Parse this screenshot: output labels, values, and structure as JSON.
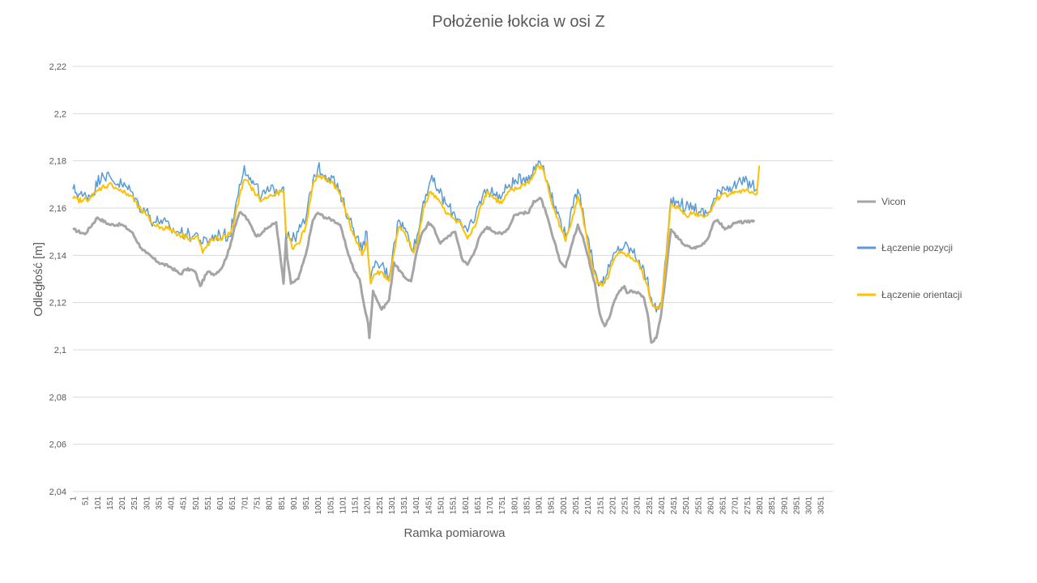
{
  "chart_data": {
    "type": "line",
    "title": "Położenie łokcia w osi Z",
    "xlabel": "Ramka pomiarowa",
    "ylabel": "Odległość [m]",
    "ylim": [
      2.04,
      2.22
    ],
    "xlim": [
      1,
      3100
    ],
    "grid": true,
    "legend_position": "right",
    "ytick_labels": [
      "2,04",
      "2,06",
      "2,08",
      "2,1",
      "2,12",
      "2,14",
      "2,16",
      "2,18",
      "2,2",
      "2,22"
    ],
    "xtick_labels": [
      "1",
      "51",
      "101",
      "151",
      "201",
      "251",
      "301",
      "351",
      "401",
      "451",
      "501",
      "551",
      "601",
      "651",
      "701",
      "751",
      "801",
      "851",
      "901",
      "951",
      "1001",
      "1051",
      "1101",
      "1151",
      "1201",
      "1251",
      "1301",
      "1351",
      "1401",
      "1451",
      "1501",
      "1551",
      "1601",
      "1651",
      "1701",
      "1751",
      "1801",
      "1851",
      "1901",
      "1951",
      "2001",
      "2051",
      "2101",
      "2151",
      "2201",
      "2251",
      "2301",
      "2351",
      "2401",
      "2451",
      "2501",
      "2551",
      "2601",
      "2651",
      "2701",
      "2751",
      "2801",
      "2851",
      "2901",
      "2951",
      "3001",
      "3051"
    ],
    "series": [
      {
        "name": "Vicon",
        "color": "#a5a5a5",
        "x": [
          1,
          50,
          101,
          150,
          200,
          240,
          280,
          300,
          350,
          400,
          440,
          460,
          480,
          500,
          520,
          550,
          580,
          610,
          640,
          660,
          680,
          700,
          725,
          750,
          775,
          800,
          830,
          860,
          870,
          875,
          890,
          920,
          950,
          980,
          1000,
          1030,
          1060,
          1090,
          1120,
          1150,
          1170,
          1190,
          1205,
          1210,
          1225,
          1260,
          1290,
          1310,
          1350,
          1380,
          1400,
          1420,
          1450,
          1470,
          1500,
          1530,
          1560,
          1590,
          1610,
          1640,
          1660,
          1690,
          1720,
          1750,
          1780,
          1800,
          1830,
          1860,
          1880,
          1910,
          1930,
          1960,
          1990,
          2010,
          2040,
          2060,
          2080,
          2100,
          2130,
          2150,
          2170,
          2190,
          2210,
          2230,
          2250,
          2260,
          2280,
          2310,
          2330,
          2345,
          2360,
          2380,
          2400,
          2420,
          2440,
          2470,
          2500,
          2530,
          2560,
          2590,
          2610,
          2630,
          2660,
          2690,
          2720,
          2750,
          2780
        ],
        "y": [
          2.151,
          2.149,
          2.156,
          2.153,
          2.153,
          2.15,
          2.143,
          2.141,
          2.137,
          2.135,
          2.132,
          2.134,
          2.134,
          2.133,
          2.127,
          2.133,
          2.132,
          2.135,
          2.143,
          2.152,
          2.158,
          2.157,
          2.153,
          2.148,
          2.15,
          2.152,
          2.154,
          2.128,
          2.147,
          2.139,
          2.128,
          2.13,
          2.14,
          2.155,
          2.158,
          2.156,
          2.155,
          2.153,
          2.142,
          2.133,
          2.13,
          2.118,
          2.111,
          2.105,
          2.125,
          2.117,
          2.121,
          2.137,
          2.131,
          2.129,
          2.14,
          2.148,
          2.154,
          2.152,
          2.145,
          2.148,
          2.15,
          2.138,
          2.136,
          2.142,
          2.148,
          2.152,
          2.15,
          2.149,
          2.152,
          2.157,
          2.158,
          2.158,
          2.163,
          2.164,
          2.158,
          2.147,
          2.137,
          2.135,
          2.146,
          2.153,
          2.148,
          2.14,
          2.128,
          2.115,
          2.11,
          2.114,
          2.121,
          2.125,
          2.127,
          2.124,
          2.125,
          2.124,
          2.122,
          2.115,
          2.103,
          2.105,
          2.115,
          2.133,
          2.151,
          2.147,
          2.144,
          2.143,
          2.144,
          2.147,
          2.153,
          2.155,
          2.151,
          2.153,
          2.154,
          2.154,
          2.155
        ]
      },
      {
        "name": "Łączenie pozycji",
        "color": "#5b9bd5",
        "x": [
          1,
          40,
          80,
          120,
          160,
          200,
          240,
          270,
          300,
          330,
          360,
          400,
          430,
          460,
          490,
          510,
          530,
          560,
          600,
          640,
          660,
          680,
          700,
          720,
          740,
          770,
          800,
          830,
          860,
          870,
          880,
          895,
          920,
          950,
          980,
          1000,
          1030,
          1060,
          1100,
          1130,
          1160,
          1180,
          1200,
          1215,
          1230,
          1260,
          1290,
          1310,
          1330,
          1360,
          1390,
          1410,
          1430,
          1460,
          1490,
          1520,
          1550,
          1580,
          1610,
          1640,
          1660,
          1690,
          1720,
          1750,
          1780,
          1810,
          1840,
          1870,
          1900,
          1920,
          1940,
          1960,
          1990,
          2010,
          2040,
          2060,
          2080,
          2100,
          2120,
          2140,
          2160,
          2180,
          2200,
          2220,
          2250,
          2280,
          2310,
          2340,
          2360,
          2380,
          2400,
          2420,
          2440,
          2470,
          2500,
          2530,
          2560,
          2590,
          2620,
          2650,
          2680,
          2710,
          2740,
          2770,
          2790
        ],
        "y": [
          2.168,
          2.165,
          2.166,
          2.175,
          2.172,
          2.17,
          2.167,
          2.161,
          2.159,
          2.154,
          2.155,
          2.151,
          2.15,
          2.149,
          2.148,
          2.149,
          2.145,
          2.147,
          2.149,
          2.148,
          2.158,
          2.17,
          2.178,
          2.172,
          2.17,
          2.165,
          2.167,
          2.168,
          2.169,
          2.147,
          2.15,
          2.146,
          2.15,
          2.155,
          2.172,
          2.177,
          2.174,
          2.173,
          2.163,
          2.155,
          2.148,
          2.142,
          2.15,
          2.13,
          2.135,
          2.136,
          2.131,
          2.145,
          2.155,
          2.15,
          2.143,
          2.15,
          2.163,
          2.172,
          2.168,
          2.162,
          2.158,
          2.155,
          2.15,
          2.155,
          2.163,
          2.168,
          2.166,
          2.165,
          2.17,
          2.171,
          2.173,
          2.174,
          2.18,
          2.178,
          2.17,
          2.162,
          2.155,
          2.148,
          2.16,
          2.168,
          2.16,
          2.148,
          2.138,
          2.13,
          2.128,
          2.132,
          2.138,
          2.142,
          2.144,
          2.142,
          2.138,
          2.13,
          2.122,
          2.116,
          2.12,
          2.14,
          2.164,
          2.163,
          2.16,
          2.161,
          2.158,
          2.158,
          2.164,
          2.169,
          2.169,
          2.17,
          2.171,
          2.17,
          2.168
        ]
      },
      {
        "name": "Łączenie orientacji",
        "color": "#ffc000",
        "x": [
          1,
          40,
          80,
          120,
          160,
          200,
          240,
          270,
          300,
          330,
          360,
          400,
          430,
          460,
          490,
          510,
          530,
          560,
          600,
          640,
          660,
          680,
          700,
          720,
          740,
          770,
          800,
          830,
          860,
          870,
          880,
          895,
          920,
          950,
          980,
          1000,
          1030,
          1060,
          1100,
          1130,
          1160,
          1180,
          1200,
          1215,
          1230,
          1260,
          1290,
          1310,
          1330,
          1360,
          1390,
          1410,
          1430,
          1460,
          1490,
          1520,
          1550,
          1580,
          1610,
          1640,
          1660,
          1690,
          1720,
          1750,
          1780,
          1810,
          1840,
          1870,
          1900,
          1920,
          1940,
          1960,
          1990,
          2010,
          2040,
          2060,
          2080,
          2100,
          2120,
          2140,
          2160,
          2180,
          2200,
          2220,
          2250,
          2280,
          2310,
          2340,
          2360,
          2380,
          2400,
          2420,
          2440,
          2470,
          2500,
          2530,
          2560,
          2590,
          2620,
          2650,
          2680,
          2710,
          2740,
          2770,
          2790,
          2800
        ],
        "y": [
          2.164,
          2.163,
          2.165,
          2.169,
          2.17,
          2.167,
          2.165,
          2.16,
          2.157,
          2.153,
          2.152,
          2.151,
          2.149,
          2.148,
          2.147,
          2.148,
          2.141,
          2.146,
          2.147,
          2.149,
          2.155,
          2.165,
          2.172,
          2.17,
          2.167,
          2.163,
          2.165,
          2.166,
          2.167,
          2.15,
          2.148,
          2.143,
          2.145,
          2.152,
          2.17,
          2.174,
          2.172,
          2.171,
          2.164,
          2.153,
          2.145,
          2.14,
          2.146,
          2.128,
          2.132,
          2.133,
          2.129,
          2.141,
          2.152,
          2.148,
          2.141,
          2.147,
          2.16,
          2.167,
          2.164,
          2.158,
          2.156,
          2.154,
          2.147,
          2.152,
          2.16,
          2.167,
          2.164,
          2.162,
          2.167,
          2.168,
          2.17,
          2.172,
          2.178,
          2.176,
          2.168,
          2.16,
          2.152,
          2.146,
          2.157,
          2.165,
          2.157,
          2.145,
          2.135,
          2.128,
          2.127,
          2.13,
          2.136,
          2.14,
          2.141,
          2.139,
          2.136,
          2.128,
          2.12,
          2.118,
          2.118,
          2.138,
          2.162,
          2.16,
          2.157,
          2.158,
          2.157,
          2.157,
          2.163,
          2.166,
          2.166,
          2.167,
          2.167,
          2.167,
          2.166,
          2.178
        ]
      }
    ]
  }
}
